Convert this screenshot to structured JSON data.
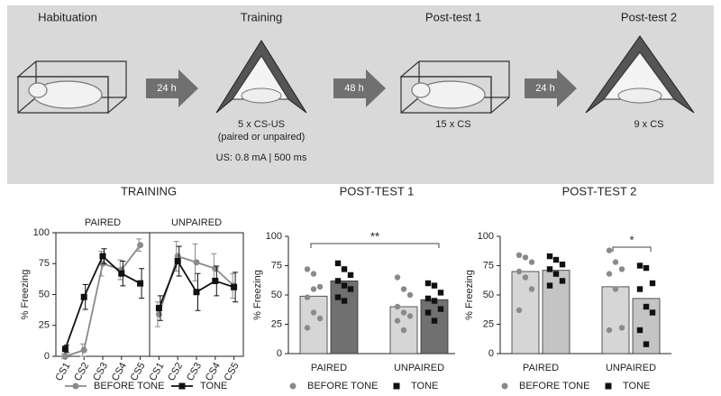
{
  "schematic": {
    "stages": [
      {
        "title": "Habituation"
      },
      {
        "title": "Training",
        "notes": [
          "5 x CS-US",
          "(paired or unpaired)",
          "US: 0.8 mA | 500 ms"
        ]
      },
      {
        "title": "Post-test 1",
        "notes": [
          "15 x CS"
        ]
      },
      {
        "title": "Post-test 2",
        "notes": [
          "9 x CS"
        ]
      }
    ],
    "arrows": [
      "24 h",
      "48 h",
      "24 h"
    ]
  },
  "chart_data": [
    {
      "type": "line",
      "title": "TRAINING",
      "y_label": "% Freezing",
      "ylim": [
        0,
        100
      ],
      "yticks": [
        0,
        25,
        50,
        75,
        100
      ],
      "categories": [
        "CS1",
        "CS2",
        "CS3",
        "CS4",
        "CS5"
      ],
      "series": [
        {
          "name": "BEFORE TONE",
          "color": "#8a8a8a",
          "marker": "circle"
        },
        {
          "name": "TONE",
          "color": "#111111",
          "marker": "square"
        }
      ],
      "panels": [
        {
          "title": "PAIRED",
          "values": [
            [
              0,
              5,
              75,
              70,
              90
            ],
            [
              6,
              48,
              81,
              67,
              59
            ]
          ],
          "errors": [
            [
              2,
              5,
              10,
              8,
              5
            ],
            [
              3,
              10,
              6,
              10,
              12
            ]
          ]
        },
        {
          "title": "UNPAIRED",
          "values": [
            [
              34,
              81,
              76,
              71,
              57
            ],
            [
              39,
              77,
              52,
              61,
              56
            ]
          ],
          "errors": [
            [
              10,
              12,
              15,
              12,
              10
            ],
            [
              10,
              12,
              15,
              12,
              12
            ]
          ]
        }
      ]
    },
    {
      "type": "bar",
      "title": "POST-TEST 1",
      "y_label": "% Freezing",
      "ylim": [
        0,
        100
      ],
      "yticks": [
        0,
        25,
        50,
        75,
        100
      ],
      "categories": [
        "PAIRED",
        "UNPAIRED"
      ],
      "series": [
        {
          "name": "BEFORE TONE",
          "color": "#8a8a8a",
          "bar_color": "#d6d6d6",
          "marker": "circle",
          "values": [
            49,
            40
          ],
          "points": [
            [
              72,
              68,
              57,
              48,
              35,
              30,
              22,
              55
            ],
            [
              65,
              55,
              50,
              40,
              35,
              32,
              28,
              20
            ]
          ]
        },
        {
          "name": "TONE",
          "color": "#111111",
          "bar_color": "#707070",
          "marker": "square",
          "values": [
            62,
            46
          ],
          "points": [
            [
              77,
              72,
              67,
              62,
              58,
              55,
              48,
              45
            ],
            [
              60,
              58,
              52,
              47,
              45,
              38,
              35,
              28
            ]
          ]
        }
      ],
      "annotations": [
        {
          "text": "**"
        }
      ]
    },
    {
      "type": "bar",
      "title": "POST-TEST 2",
      "y_label": "% Freezing",
      "ylim": [
        0,
        100
      ],
      "yticks": [
        0,
        25,
        50,
        75,
        100
      ],
      "categories": [
        "PAIRED",
        "UNPAIRED"
      ],
      "series": [
        {
          "name": "BEFORE TONE",
          "color": "#8a8a8a",
          "bar_color": "#d6d6d6",
          "marker": "circle",
          "values": [
            70,
            57
          ],
          "points": [
            [
              84,
              82,
              78,
              70,
              65,
              55,
              37
            ],
            [
              88,
              78,
              72,
              68,
              55,
              22,
              20
            ]
          ]
        },
        {
          "name": "TONE",
          "color": "#111111",
          "bar_color": "#c4c4c4",
          "marker": "square",
          "values": [
            71,
            47
          ],
          "points": [
            [
              83,
              80,
              76,
              72,
              68,
              62,
              58
            ],
            [
              75,
              73,
              60,
              55,
              40,
              35,
              20,
              8
            ]
          ]
        }
      ],
      "annotations": [
        {
          "text": "*"
        }
      ]
    }
  ]
}
